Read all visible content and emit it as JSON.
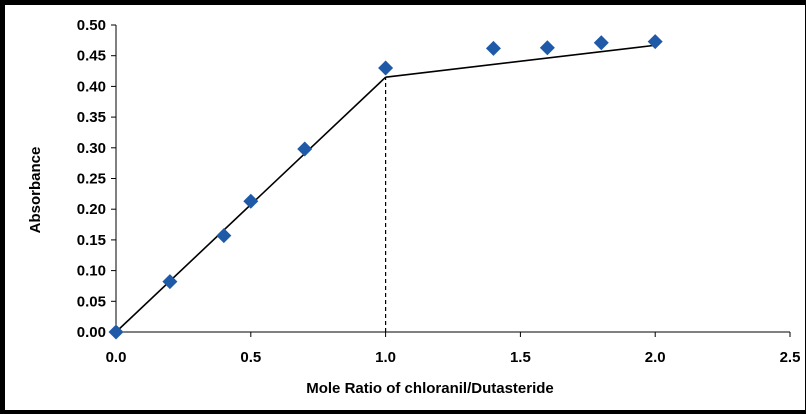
{
  "chart_data": {
    "type": "scatter",
    "xlabel": "Mole Ratio of chloranil/Dutasteride",
    "ylabel": "Absorbance",
    "xlim": [
      0,
      2.5
    ],
    "ylim": [
      0,
      0.5
    ],
    "x_ticks": [
      "0.0",
      "0.5",
      "1.0",
      "1.5",
      "2.0",
      "2.5"
    ],
    "y_ticks": [
      "0.00",
      "0.05",
      "0.10",
      "0.15",
      "0.20",
      "0.25",
      "0.30",
      "0.35",
      "0.40",
      "0.45",
      "0.50"
    ],
    "marker": "diamond",
    "marker_color": "#1f5aa8",
    "line_color": "#000000",
    "series": [
      {
        "x": [
          0.0,
          0.2,
          0.4,
          0.5,
          0.7,
          1.0,
          1.4,
          1.6,
          1.8,
          2.0
        ],
        "y": [
          0.0,
          0.082,
          0.157,
          0.213,
          0.298,
          0.43,
          0.462,
          0.463,
          0.471,
          0.473
        ]
      }
    ],
    "fit_lines": [
      {
        "x": [
          0.0,
          1.0
        ],
        "y": [
          0.0,
          0.415
        ]
      },
      {
        "x": [
          1.0,
          2.0
        ],
        "y": [
          0.415,
          0.467
        ]
      }
    ],
    "reference_line": {
      "x": 1.0,
      "y_from": 0.0,
      "y_to": 0.415,
      "style": "dashed"
    }
  }
}
